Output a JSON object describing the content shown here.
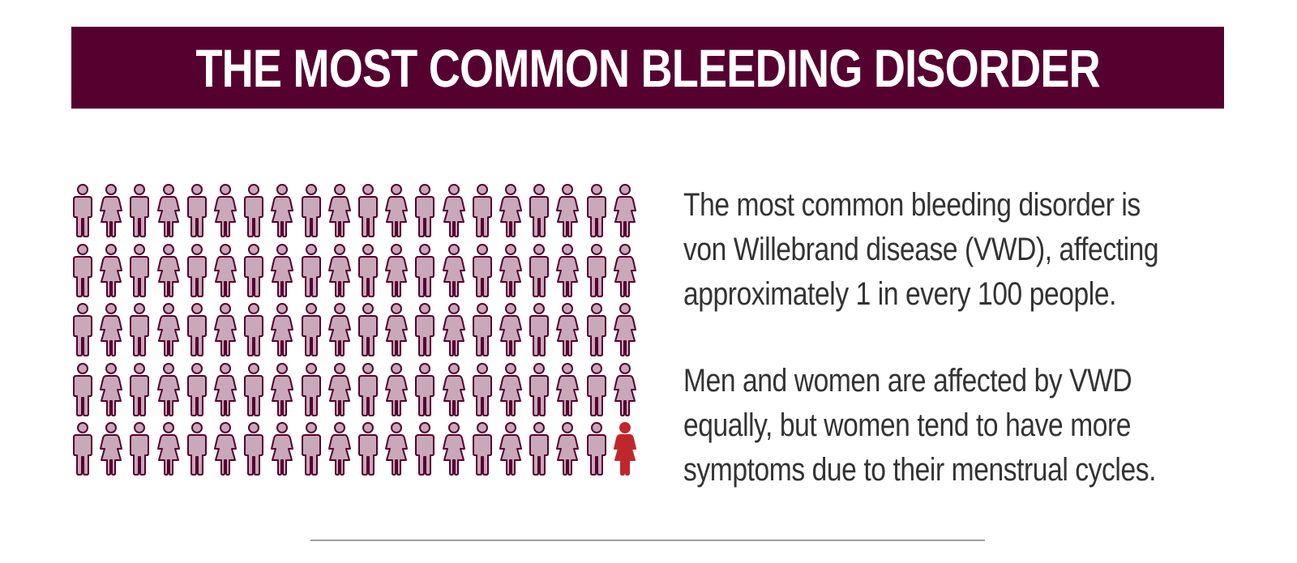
{
  "colors": {
    "banner_bg": "#560030",
    "person_fill": "#c9a8ba",
    "person_stroke": "#560030",
    "highlight_fill": "#c0272d",
    "divider": "#9e9e9e",
    "text": "#333333"
  },
  "header": {
    "title": "THE MOST COMMON BLEEDING DISORDER"
  },
  "pictogram": {
    "total": 100,
    "affected": 1,
    "icons": [
      "male-person-icon",
      "female-person-icon"
    ],
    "highlight_icon": "female-person-icon"
  },
  "text": {
    "paragraph1": {
      "line1": "The most common bleeding disorder is",
      "line2": "von Willebrand disease (VWD), affecting",
      "line3": "approximately 1 in every 100 people."
    },
    "paragraph2": {
      "line1": "Men and women are affected by VWD",
      "line2": "equally, but women tend to have more",
      "line3": "symptoms due to their menstrual cycles."
    }
  }
}
